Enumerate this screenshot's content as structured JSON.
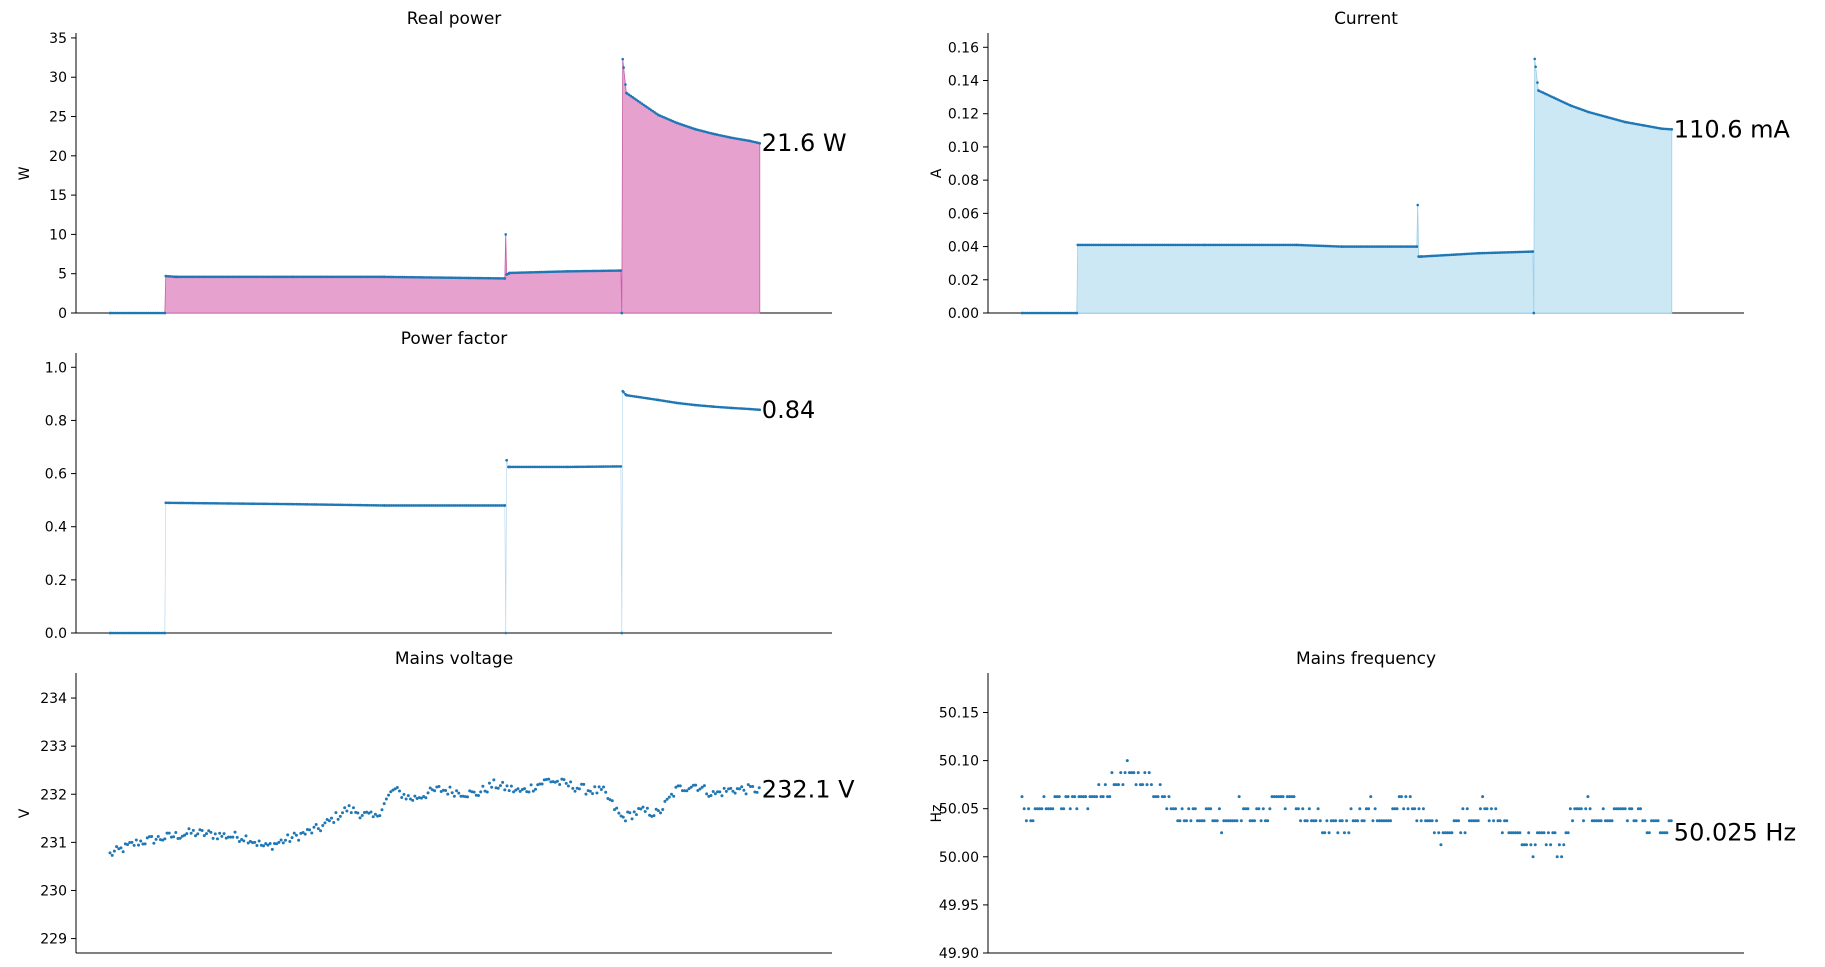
{
  "chart_data": [
    {
      "id": "real-power",
      "type": "area",
      "title": "Real power",
      "xlabel": "",
      "ylabel": "W",
      "ylim": [
        0,
        35.5
      ],
      "yticks": [
        0,
        5,
        10,
        15,
        20,
        25,
        30,
        35
      ],
      "ytick_labels": [
        "0",
        "5",
        "10",
        "15",
        "20",
        "25",
        "30",
        "35"
      ],
      "annotation": "21.6 W",
      "fill_color": "#e7a1cf",
      "edge_color": "#c55fa6",
      "point_color": "#1f77b4",
      "x": [
        0,
        60,
        61,
        72,
        73,
        200,
        300,
        432,
        433,
        434,
        436,
        437,
        500,
        559,
        560,
        561,
        565,
        600,
        620,
        640,
        660,
        680,
        700,
        711
      ],
      "series": [
        {
          "values": [
            0,
            0,
            4.7,
            4.6,
            4.6,
            4.6,
            4.6,
            4.4,
            10.0,
            4.9,
            5.0,
            5.1,
            5.3,
            5.4,
            0,
            32.3,
            28.0,
            25.2,
            24.2,
            23.4,
            22.8,
            22.3,
            21.9,
            21.6
          ]
        }
      ]
    },
    {
      "id": "current",
      "type": "area",
      "title": "Current",
      "xlabel": "",
      "ylabel": "A",
      "ylim": [
        0,
        0.168
      ],
      "yticks": [
        0,
        0.02,
        0.04,
        0.06,
        0.08,
        0.1,
        0.12,
        0.14,
        0.16
      ],
      "ytick_labels": [
        "0.00",
        "0.02",
        "0.04",
        "0.06",
        "0.08",
        "0.10",
        "0.12",
        "0.14",
        "0.16"
      ],
      "annotation": "110.6 mA",
      "fill_color": "#cde8f5",
      "edge_color": "#9ccfe8",
      "point_color": "#1f77b4",
      "x": [
        0,
        60,
        61,
        200,
        300,
        350,
        432,
        433,
        434,
        436,
        437,
        500,
        559,
        560,
        561,
        565,
        600,
        620,
        640,
        660,
        680,
        700,
        711
      ],
      "series": [
        {
          "values": [
            0,
            0,
            0.041,
            0.041,
            0.041,
            0.04,
            0.04,
            0.065,
            0.034,
            0.034,
            0.034,
            0.036,
            0.037,
            0,
            0.153,
            0.134,
            0.125,
            0.121,
            0.118,
            0.115,
            0.113,
            0.111,
            0.1106
          ]
        }
      ]
    },
    {
      "id": "power-factor",
      "type": "line",
      "title": "Power factor",
      "xlabel": "",
      "ylabel": "",
      "ylim": [
        0,
        1.05
      ],
      "yticks": [
        0,
        0.2,
        0.4,
        0.6,
        0.8,
        1.0
      ],
      "ytick_labels": [
        "0.0",
        "0.2",
        "0.4",
        "0.6",
        "0.8",
        "1.0"
      ],
      "annotation": "0.84",
      "point_color": "#1f77b4",
      "x": [
        0,
        60,
        61,
        200,
        300,
        432,
        433,
        434,
        436,
        437,
        500,
        559,
        560,
        561,
        565,
        600,
        620,
        640,
        660,
        680,
        700,
        711
      ],
      "series": [
        {
          "values": [
            0,
            0,
            0.49,
            0.485,
            0.48,
            0.48,
            0,
            0.65,
            0.625,
            0.625,
            0.625,
            0.627,
            0,
            0.91,
            0.895,
            0.877,
            0.866,
            0.858,
            0.852,
            0.847,
            0.843,
            0.84
          ]
        }
      ]
    },
    {
      "id": "mains-voltage",
      "type": "scatter",
      "title": "Mains voltage",
      "xlabel": "",
      "ylabel": "V",
      "ylim": [
        228.7,
        234.5
      ],
      "yticks": [
        229,
        230,
        231,
        232,
        233,
        234
      ],
      "ytick_labels": [
        "229",
        "230",
        "231",
        "232",
        "233",
        "234"
      ],
      "annotation": "232.1 V",
      "point_color": "#1f77b4",
      "x": [
        0,
        30,
        60,
        90,
        120,
        150,
        170,
        200,
        230,
        260,
        290,
        310,
        330,
        360,
        380,
        400,
        420,
        450,
        480,
        500,
        520,
        540,
        560,
        580,
        600,
        620,
        640,
        660,
        680,
        700,
        711
      ],
      "series": [
        {
          "values": [
            230.75,
            231.0,
            231.1,
            231.2,
            231.15,
            231.1,
            230.9,
            231.1,
            231.3,
            231.7,
            231.5,
            232.1,
            231.9,
            232.1,
            232.05,
            232.0,
            232.2,
            232.05,
            232.3,
            232.2,
            232.1,
            232.05,
            231.5,
            231.65,
            231.6,
            232.1,
            232.2,
            232.0,
            232.1,
            232.1,
            232.1
          ]
        }
      ]
    },
    {
      "id": "mains-frequency",
      "type": "scatter",
      "title": "Mains frequency",
      "xlabel": "",
      "ylabel": "Hz",
      "ylim": [
        49.9,
        50.19
      ],
      "yticks": [
        49.9,
        49.95,
        50.0,
        50.05,
        50.1,
        50.15
      ],
      "ytick_labels": [
        "49.90",
        "49.95",
        "50.00",
        "50.05",
        "50.10",
        "50.15"
      ],
      "annotation": "50.025 Hz",
      "point_color": "#1f77b4",
      "x": [
        0,
        10,
        20,
        40,
        60,
        80,
        100,
        120,
        140,
        160,
        180,
        200,
        220,
        240,
        260,
        280,
        300,
        320,
        340,
        360,
        380,
        400,
        420,
        440,
        460,
        480,
        500,
        520,
        540,
        560,
        580,
        590,
        600,
        620,
        640,
        660,
        680,
        700,
        711
      ],
      "series": [
        {
          "values": [
            50.05,
            50.038,
            50.05,
            50.062,
            50.05,
            50.062,
            50.075,
            50.088,
            50.075,
            50.062,
            50.038,
            50.05,
            50.038,
            50.05,
            50.038,
            50.062,
            50.05,
            50.038,
            50.025,
            50.038,
            50.05,
            50.038,
            50.062,
            50.038,
            50.025,
            50.038,
            50.05,
            50.038,
            50.025,
            50.012,
            50.025,
            50.0,
            50.038,
            50.05,
            50.038,
            50.05,
            50.038,
            50.025,
            50.025
          ]
        }
      ]
    }
  ]
}
